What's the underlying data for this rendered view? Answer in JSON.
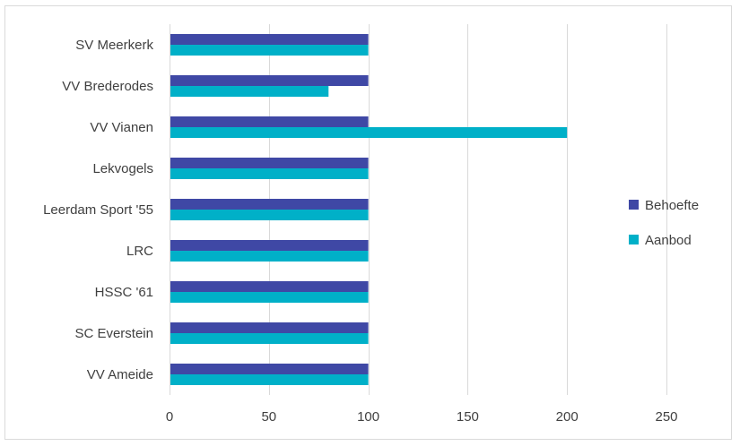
{
  "chart_data": {
    "type": "bar",
    "orientation": "horizontal",
    "categories": [
      "SV Meerkerk",
      "VV Brederodes",
      "VV Vianen",
      "Lekvogels",
      "Leerdam Sport '55",
      "LRC",
      "HSSC '61",
      "SC Everstein",
      "VV Ameide"
    ],
    "series": [
      {
        "name": "Behoefte",
        "color": "#3f48a5",
        "values": [
          100,
          100,
          100,
          100,
          100,
          100,
          100,
          100,
          100
        ]
      },
      {
        "name": "Aanbod",
        "color": "#00b0c8",
        "values": [
          100,
          80,
          200,
          100,
          100,
          100,
          100,
          100,
          100
        ]
      }
    ],
    "xlim": [
      0,
      250
    ],
    "xticks": [
      0,
      50,
      100,
      150,
      200,
      250
    ],
    "xgrid": true,
    "legend_position": "right",
    "title": "",
    "xlabel": "",
    "ylabel": ""
  }
}
